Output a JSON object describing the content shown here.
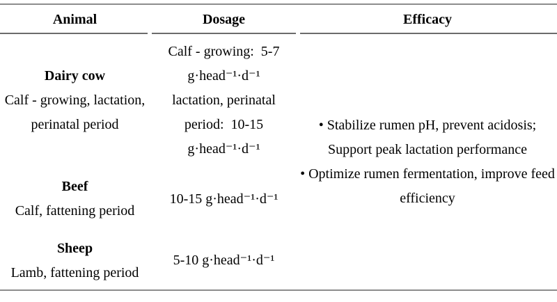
{
  "table": {
    "headers": [
      "Animal",
      "Dosage",
      "Efficacy"
    ],
    "rows": [
      {
        "animal": "Dairy cow",
        "animal_details": [
          "Calf - growing, lactation,",
          "perinatal period"
        ],
        "dosage": [
          "Calf - growing:  5-7",
          "g·head⁻¹·d⁻¹",
          "lactation, perinatal",
          "period:  10-15",
          "g·head⁻¹·d⁻¹"
        ]
      },
      {
        "animal": "Beef",
        "animal_details": [
          "Calf, fattening period"
        ],
        "dosage": [
          "10-15 g·head⁻¹·d⁻¹"
        ]
      },
      {
        "animal": "Sheep",
        "animal_details": [
          "Lamb, fattening period"
        ],
        "dosage": [
          "5-10 g·head⁻¹·d⁻¹"
        ]
      }
    ],
    "efficacy": [
      "• Stabilize rumen pH, prevent acidosis;",
      "Support peak lactation performance",
      "• Optimize rumen fermentation, improve feed",
      "efficiency"
    ]
  },
  "colors": {
    "rule_heavy": "#8c8c8c",
    "rule_light": "#6b6b6b",
    "text": "#000000"
  }
}
